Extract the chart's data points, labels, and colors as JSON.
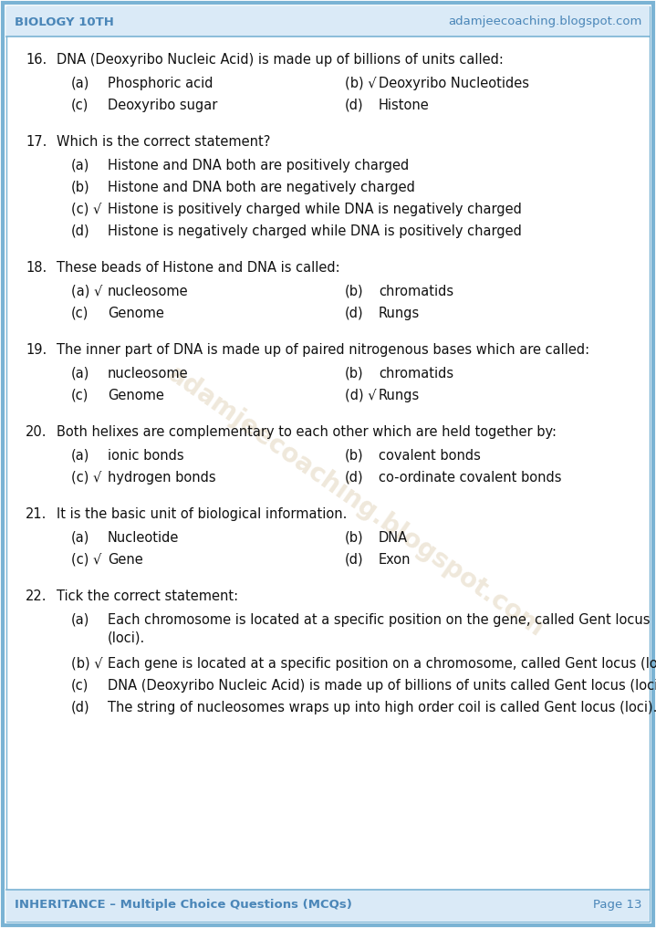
{
  "header_left": "BIOLOGY 10TH",
  "header_right": "adamjeecoaching.blogspot.com",
  "footer_left": "INHERITANCE – Multiple Choice Questions (MCQs)",
  "footer_right": "Page 13",
  "watermark": "adamjeecoaching.blogspot.com",
  "bg_color": "#ffffff",
  "border_outer_color": "#7ab3d4",
  "border_inner_color": "#7ab3d4",
  "header_bg": "#daeaf7",
  "header_text_color": "#4a86b8",
  "footer_bg": "#daeaf7",
  "footer_text_color": "#4a86b8",
  "body_text_color": "#111111",
  "questions": [
    {
      "num": "16.",
      "question": "DNA (Deoxyribo Nucleic Acid) is made up of billions of units called:",
      "options": [
        {
          "label": "(a)",
          "text": "Phosphoric acid",
          "correct": false
        },
        {
          "label": "(b)",
          "text": "Deoxyribo Nucleotides",
          "correct": true
        },
        {
          "label": "(c)",
          "text": "Deoxyribo sugar",
          "correct": false
        },
        {
          "label": "(d)",
          "text": "Histone",
          "correct": false
        }
      ],
      "two_col": true,
      "extra_space": 18
    },
    {
      "num": "17.",
      "question": "Which is the correct statement?",
      "options": [
        {
          "label": "(a)",
          "text": "Histone and DNA both are positively charged",
          "correct": false
        },
        {
          "label": "(b)",
          "text": "Histone and DNA both are negatively charged",
          "correct": false
        },
        {
          "label": "(c)",
          "text": "Histone is positively charged while DNA is negatively charged",
          "correct": true
        },
        {
          "label": "(d)",
          "text": "Histone is negatively charged while DNA is positively charged",
          "correct": false
        }
      ],
      "two_col": false,
      "extra_space": 18
    },
    {
      "num": "18.",
      "question": "These beads of Histone and DNA is called:",
      "options": [
        {
          "label": "(a)",
          "text": "nucleosome",
          "correct": true
        },
        {
          "label": "(b)",
          "text": "chromatids",
          "correct": false
        },
        {
          "label": "(c)",
          "text": "Genome",
          "correct": false
        },
        {
          "label": "(d)",
          "text": "Rungs",
          "correct": false
        }
      ],
      "two_col": true,
      "extra_space": 18
    },
    {
      "num": "19.",
      "question": "The inner part of DNA is made up of paired nitrogenous bases which are called:",
      "options": [
        {
          "label": "(a)",
          "text": "nucleosome",
          "correct": false
        },
        {
          "label": "(b)",
          "text": "chromatids",
          "correct": false
        },
        {
          "label": "(c)",
          "text": "Genome",
          "correct": false
        },
        {
          "label": "(d)",
          "text": "Rungs",
          "correct": true
        }
      ],
      "two_col": true,
      "extra_space": 18
    },
    {
      "num": "20.",
      "question": "Both helixes are complementary to each other which are held together by:",
      "options": [
        {
          "label": "(a)",
          "text": "ionic bonds",
          "correct": false
        },
        {
          "label": "(b)",
          "text": "covalent bonds",
          "correct": false
        },
        {
          "label": "(c)",
          "text": "hydrogen bonds",
          "correct": true
        },
        {
          "label": "(d)",
          "text": "co-ordinate covalent bonds",
          "correct": false
        }
      ],
      "two_col": true,
      "extra_space": 18
    },
    {
      "num": "21.",
      "question": "It is the basic unit of biological information.",
      "options": [
        {
          "label": "(a)",
          "text": "Nucleotide",
          "correct": false
        },
        {
          "label": "(b)",
          "text": "DNA",
          "correct": false
        },
        {
          "label": "(c)",
          "text": "Gene",
          "correct": true
        },
        {
          "label": "(d)",
          "text": "Exon",
          "correct": false
        }
      ],
      "two_col": true,
      "extra_space": 18
    },
    {
      "num": "22.",
      "question": "Tick the correct statement:",
      "options": [
        {
          "label": "(a)",
          "text": "Each chromosome is located at a specific position on the gene, called Gent locus\n(loci).",
          "correct": false,
          "lines": 2
        },
        {
          "label": "(b)",
          "text": "Each gene is located at a specific position on a chromosome, called Gent locus (loci).",
          "correct": true,
          "lines": 1
        },
        {
          "label": "(c)",
          "text": "DNA (Deoxyribo Nucleic Acid) is made up of billions of units called Gent locus (loci).",
          "correct": false,
          "lines": 1
        },
        {
          "label": "(d)",
          "text": "The string of nucleosomes wraps up into high order coil is called Gent locus (loci).",
          "correct": false,
          "lines": 1
        }
      ],
      "two_col": false,
      "extra_space": 0
    }
  ]
}
